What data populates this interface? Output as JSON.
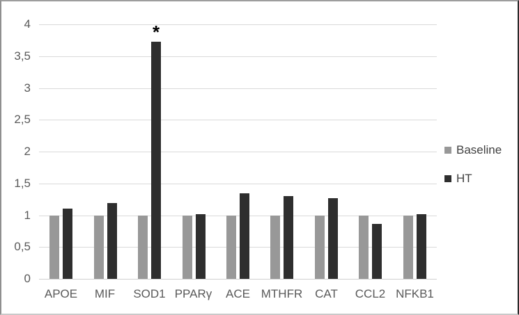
{
  "chart_data": {
    "type": "bar",
    "title": "",
    "xlabel": "",
    "ylabel": "",
    "categories": [
      "APOE",
      "MIF",
      "SOD1",
      "PPARγ",
      "ACE",
      "MTHFR",
      "CAT",
      "CCL2",
      "NFKB1"
    ],
    "series": [
      {
        "name": "Baseline",
        "color": "#989898",
        "values": [
          1.0,
          1.0,
          1.0,
          1.0,
          1.0,
          1.0,
          1.0,
          1.0,
          1.0
        ]
      },
      {
        "name": "HT",
        "color": "#2e2e2e",
        "values": [
          1.1,
          1.19,
          3.73,
          1.02,
          1.34,
          1.3,
          1.27,
          0.86,
          1.02
        ]
      }
    ],
    "ylim": [
      0,
      4
    ],
    "ytick_step": 0.5,
    "yticks": [
      {
        "value": 0,
        "label": "0"
      },
      {
        "value": 0.5,
        "label": "0,5"
      },
      {
        "value": 1,
        "label": "1"
      },
      {
        "value": 1.5,
        "label": "1,5"
      },
      {
        "value": 2,
        "label": "2"
      },
      {
        "value": 2.5,
        "label": "2,5"
      },
      {
        "value": 3,
        "label": "3"
      },
      {
        "value": 3.5,
        "label": "3,5"
      },
      {
        "value": 4,
        "label": "4"
      }
    ],
    "decimal_separator": ",",
    "grid": true,
    "legend_position": "right",
    "annotations": [
      {
        "text": "*",
        "category": "SOD1",
        "series": "HT"
      }
    ]
  },
  "style": {
    "gridline_color": "#d9d9d9",
    "axis_line_color": "#cfcfcf",
    "tick_label_color": "#595959",
    "legend_text_color": "#404040",
    "background_color": "#ffffff"
  }
}
